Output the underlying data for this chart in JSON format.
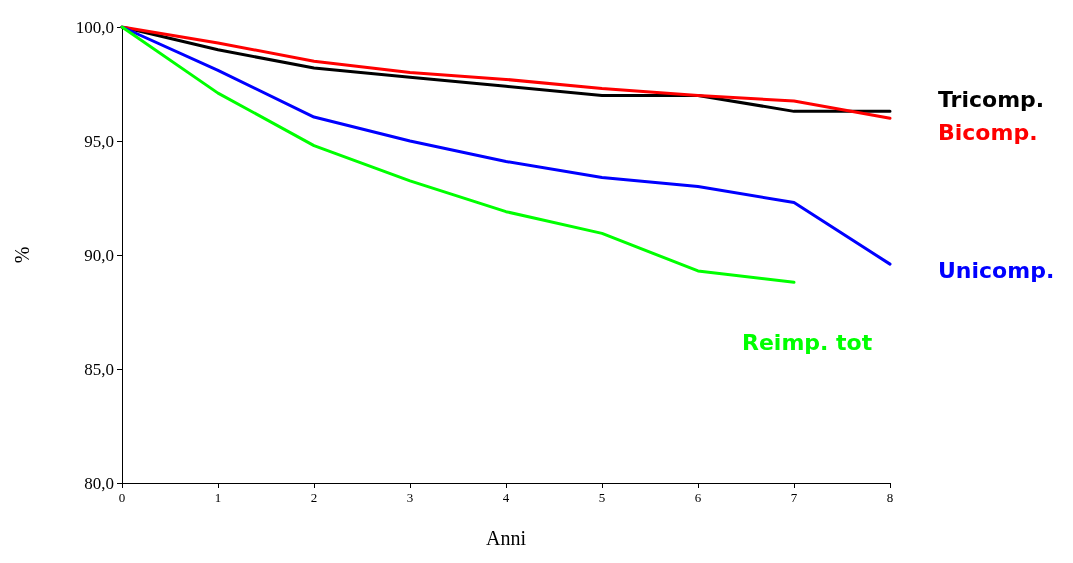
{
  "chart_data": {
    "type": "line",
    "xlabel": "Anni",
    "ylabel": "%",
    "x": [
      0,
      1,
      2,
      3,
      4,
      5,
      6,
      7,
      8
    ],
    "xlim": [
      0,
      8
    ],
    "xticks": [
      0,
      1,
      2,
      3,
      4,
      5,
      6,
      7,
      8
    ],
    "ylim": [
      80,
      100
    ],
    "yticks": [
      {
        "value": 80,
        "label": "80,0"
      },
      {
        "value": 85,
        "label": "85,0"
      },
      {
        "value": 90,
        "label": "90,0"
      },
      {
        "value": 95,
        "label": "95,0"
      },
      {
        "value": 100,
        "label": "100,0"
      }
    ],
    "grid": false,
    "legend": false,
    "marker": "none",
    "line_style": "solid",
    "series": [
      {
        "name": "Tricomp.",
        "color": "#000000",
        "values": [
          100,
          99.0,
          98.2,
          97.8,
          97.4,
          97.0,
          97.0,
          96.3,
          96.3
        ]
      },
      {
        "name": "Bicomp.",
        "color": "#ff0000",
        "values": [
          100,
          99.3,
          98.5,
          98.0,
          97.7,
          97.3,
          97.0,
          96.75,
          96.0
        ]
      },
      {
        "name": "Unicomp.",
        "color": "#0000ff",
        "values": [
          100,
          98.1,
          96.05,
          95.0,
          94.1,
          93.4,
          93.0,
          92.3,
          89.6
        ]
      },
      {
        "name": "Reimp. tot",
        "color": "#00ff00",
        "values": [
          100,
          97.1,
          94.8,
          93.25,
          91.9,
          90.95,
          89.3,
          88.8,
          null
        ]
      }
    ]
  }
}
